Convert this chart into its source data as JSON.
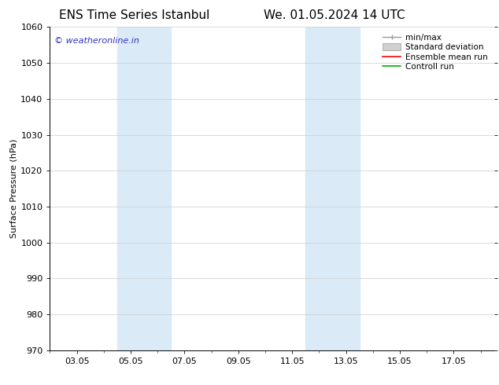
{
  "title_left": "ENS Time Series Istanbul",
  "title_right": "We. 01.05.2024 14 UTC",
  "ylabel": "Surface Pressure (hPa)",
  "ylim": [
    970,
    1060
  ],
  "yticks": [
    970,
    980,
    990,
    1000,
    1010,
    1020,
    1030,
    1040,
    1050,
    1060
  ],
  "xtick_labels": [
    "03.05",
    "05.05",
    "07.05",
    "09.05",
    "11.05",
    "13.05",
    "15.05",
    "17.05"
  ],
  "xtick_positions": [
    2,
    4,
    6,
    8,
    10,
    12,
    14,
    16
  ],
  "xlim": [
    1,
    17.5
  ],
  "shaded_regions": [
    {
      "x_start": 3.5,
      "x_end": 5.5
    },
    {
      "x_start": 10.5,
      "x_end": 12.5
    }
  ],
  "shaded_color": "#daeaf7",
  "watermark_text": "© weatheronline.in",
  "watermark_color": "#3333bb",
  "legend_labels": [
    "min/max",
    "Standard deviation",
    "Ensemble mean run",
    "Controll run"
  ],
  "legend_colors_line": [
    "#999999",
    "#bbbbbb",
    "#ff0000",
    "#00aa00"
  ],
  "background_color": "#ffffff",
  "plot_bg_color": "#ffffff",
  "grid_color": "#cccccc",
  "title_fontsize": 11,
  "ylabel_fontsize": 8,
  "tick_fontsize": 8,
  "legend_fontsize": 7.5,
  "watermark_fontsize": 8
}
